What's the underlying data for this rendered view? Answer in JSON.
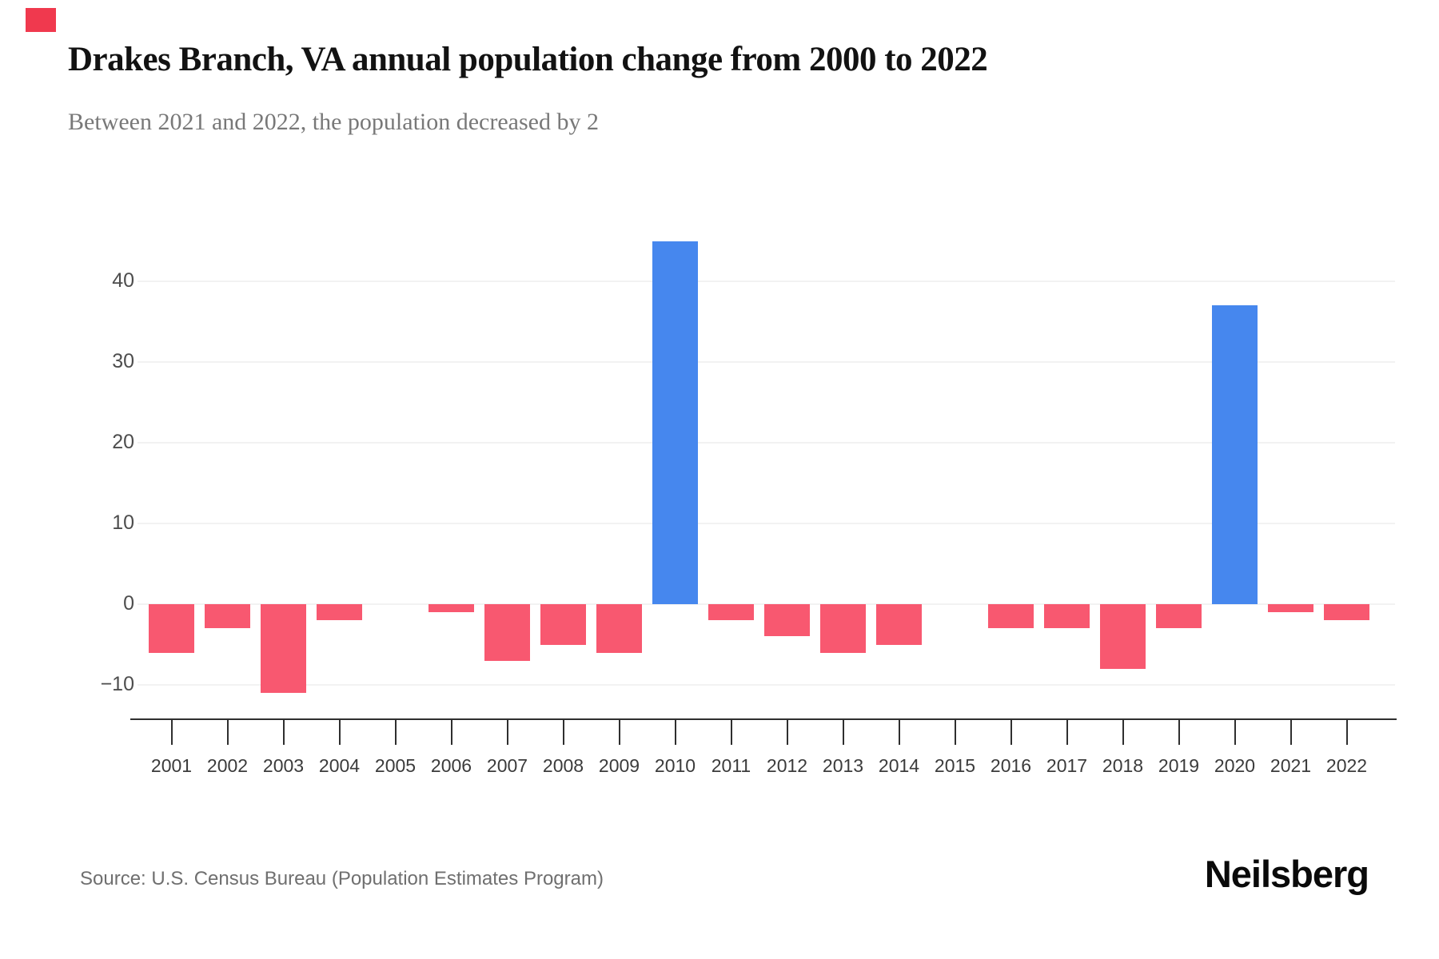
{
  "page": {
    "title": "Drakes Branch, VA annual population change from 2000 to 2022",
    "subtitle": "Between 2021 and 2022, the population decreased by 2",
    "source": "Source: U.S. Census Bureau (Population Estimates Program)",
    "brand": "Neilsberg",
    "brand_mark_color": "#f0394e"
  },
  "chart_data": {
    "type": "bar",
    "title": "Drakes Branch, VA annual population change from 2000 to 2022",
    "subtitle": "Between 2021 and 2022, the population decreased by 2",
    "categories": [
      "2001",
      "2002",
      "2003",
      "2004",
      "2005",
      "2006",
      "2007",
      "2008",
      "2009",
      "2010",
      "2011",
      "2012",
      "2013",
      "2014",
      "2015",
      "2016",
      "2017",
      "2018",
      "2019",
      "2020",
      "2021",
      "2022"
    ],
    "values": [
      -6,
      -3,
      -11,
      -2,
      0,
      -1,
      -7,
      -5,
      -6,
      45,
      -2,
      -4,
      -6,
      -5,
      0,
      -3,
      -3,
      -8,
      -3,
      37,
      -1,
      -2
    ],
    "y_ticks": [
      40,
      30,
      20,
      10,
      0,
      -10
    ],
    "y_tick_labels": [
      "40",
      "30",
      "20",
      "10",
      "0",
      "−10"
    ],
    "ylim": [
      -14,
      50
    ],
    "xlabel": "",
    "ylabel": "",
    "grid": true,
    "legend_position": "none",
    "positive_color": "#4687ee",
    "negative_color": "#f85870",
    "gridline_color": "#f2f2f2",
    "axis_color": "#2f2f2f"
  }
}
